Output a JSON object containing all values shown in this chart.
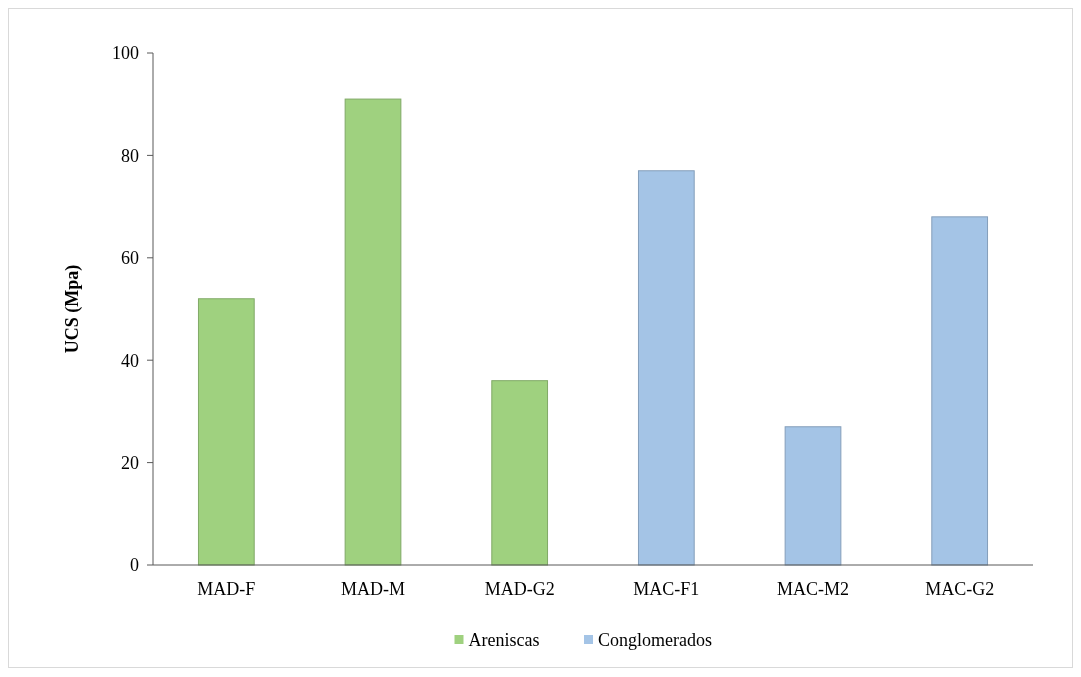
{
  "chart_data": {
    "type": "bar",
    "ylabel": "UCS  (Mpa)",
    "categories": [
      "MAD-F",
      "MAD-M",
      "MAD-G2",
      "MAC-F1",
      "MAC-M2",
      "MAC-G2"
    ],
    "series": [
      {
        "name": "Areniscas",
        "color": "#9fd17f",
        "values": [
          52,
          91,
          36,
          null,
          null,
          null
        ]
      },
      {
        "name": "Conglomerados",
        "color": "#a4c4e6",
        "values": [
          null,
          null,
          null,
          77,
          27,
          68
        ]
      }
    ],
    "ylim": [
      0,
      100
    ],
    "yticks": [
      0,
      20,
      40,
      60,
      80,
      100
    ],
    "grid": false,
    "legend": "bottom"
  }
}
